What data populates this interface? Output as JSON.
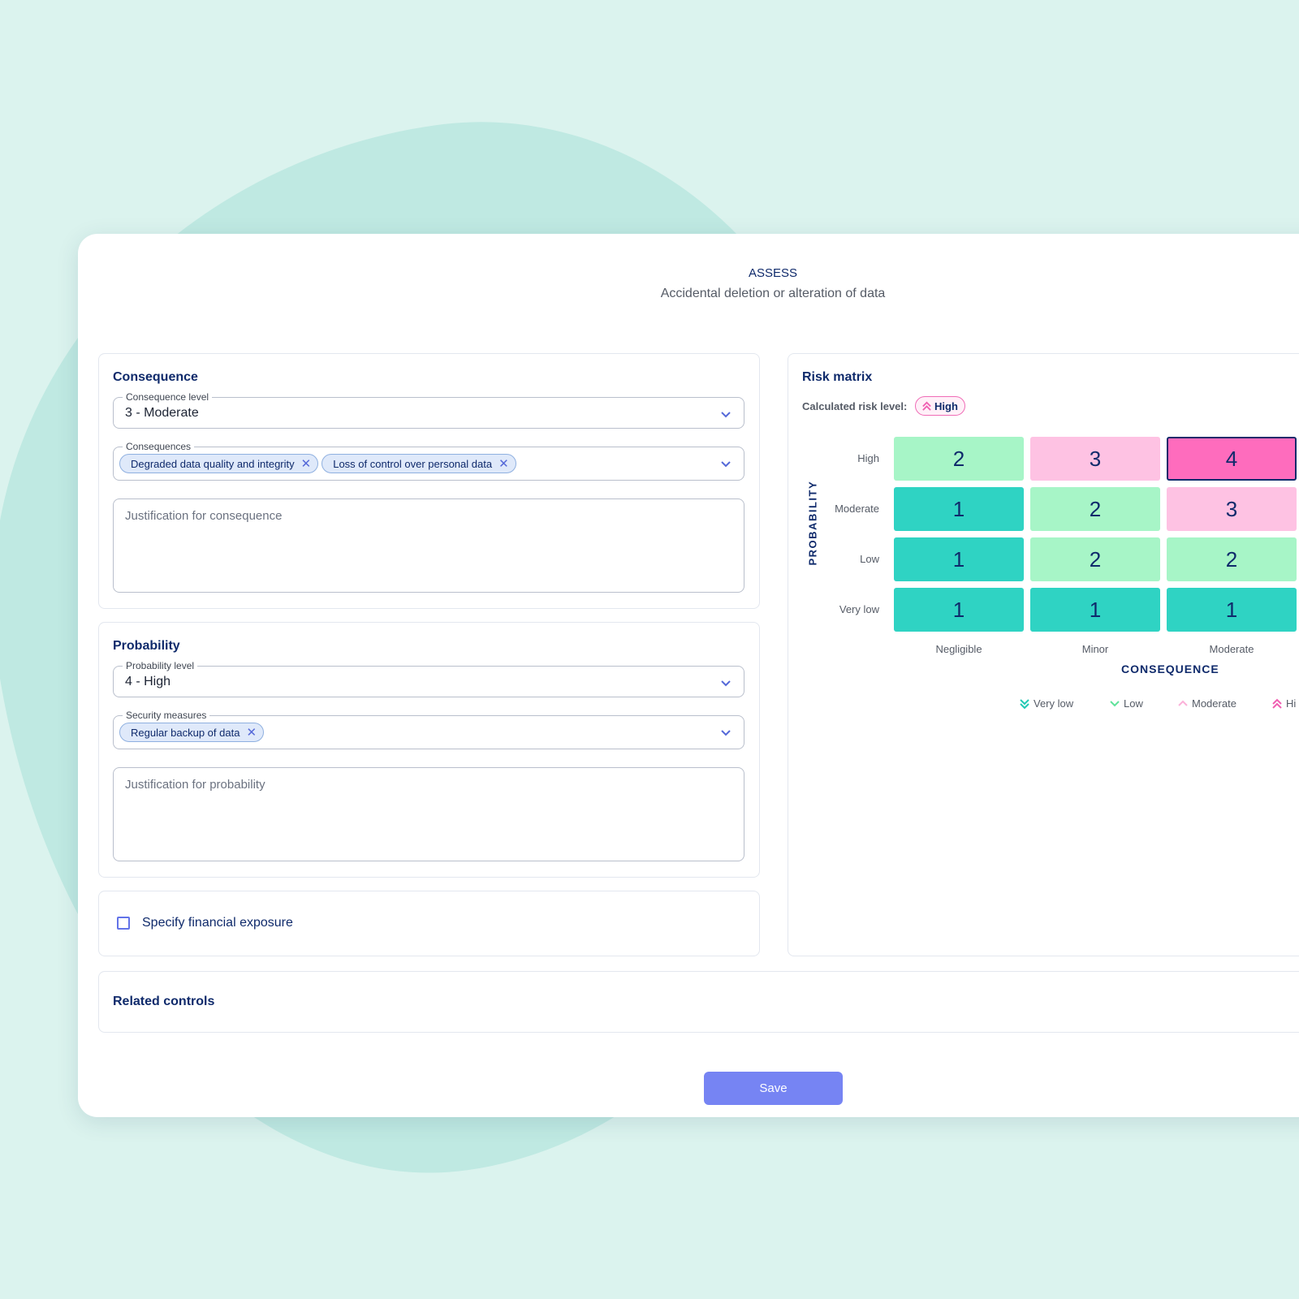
{
  "header": {
    "eyebrow": "ASSESS",
    "subtitle": "Accidental deletion or alteration of data"
  },
  "consequence": {
    "title": "Consequence",
    "level_label": "Consequence level",
    "level_value": "3 - Moderate",
    "consequences_label": "Consequences",
    "consequences": [
      "Degraded data quality and integrity",
      "Loss of control over personal data"
    ],
    "justification_placeholder": "Justification for consequence"
  },
  "probability": {
    "title": "Probability",
    "level_label": "Probability level",
    "level_value": "4 - High",
    "measures_label": "Security measures",
    "measures": [
      "Regular backup of data"
    ],
    "justification_placeholder": "Justification for probability"
  },
  "financial": {
    "label": "Specify financial exposure",
    "checked": false
  },
  "related": {
    "title": "Related controls"
  },
  "risk_matrix": {
    "title": "Risk matrix",
    "calculated_label": "Calculated risk level:",
    "calculated_value": "High",
    "y_axis": "PROBABILITY",
    "x_axis": "CONSEQUENCE",
    "rows": [
      "High",
      "Moderate",
      "Low",
      "Very low"
    ],
    "columns": [
      "Negligible",
      "Minor",
      "Moderate"
    ],
    "values": [
      [
        2,
        3,
        4
      ],
      [
        1,
        2,
        3
      ],
      [
        1,
        2,
        2
      ],
      [
        1,
        1,
        1
      ]
    ],
    "selected": {
      "row": 0,
      "col": 2
    },
    "level_colors": {
      "1": "#2fd3c3",
      "2": "#a7f5c7",
      "3": "#fec2e3",
      "4": "#fe6cbd"
    },
    "legend": [
      {
        "label": "Very low",
        "icon": "double-chevron-down-icon",
        "color": "#21c9b4"
      },
      {
        "label": "Low",
        "icon": "chevron-down-icon",
        "color": "#5fe29a"
      },
      {
        "label": "Moderate",
        "icon": "chevron-up-icon",
        "color": "#fbb1d9"
      },
      {
        "label": "Hi",
        "icon": "double-chevron-up-icon",
        "color": "#f05fb2"
      }
    ]
  },
  "actions": {
    "save_label": "Save"
  },
  "colors": {
    "accent": "#7684f3",
    "navy": "#0f2a6b",
    "background": "#dbf3ee"
  }
}
